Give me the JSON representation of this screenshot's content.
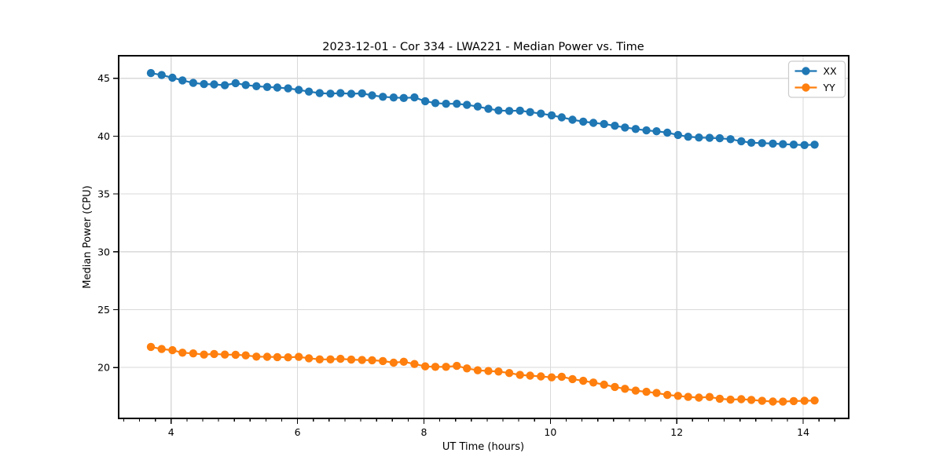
{
  "chart_data": {
    "type": "line",
    "title": "2023-12-01 - Cor 334 - LWA221 - Median Power vs. Time",
    "xlabel": "UT Time (hours)",
    "ylabel": "Median Power (CPU)",
    "xlim": [
      3.17,
      14.72
    ],
    "ylim": [
      15.6,
      46.95
    ],
    "x_ticks": [
      4,
      6,
      8,
      10,
      12,
      14
    ],
    "x_minor_step": 0.25,
    "y_ticks": [
      20,
      25,
      30,
      35,
      40,
      45
    ],
    "grid": true,
    "legend_position": "upper right",
    "marker": "circle",
    "style": {
      "background": "#ffffff",
      "grid_color": "#d9d9d9",
      "spine_color": "#000000",
      "legend_border": "#cccccc"
    },
    "x": [
      3.68,
      3.85,
      4.02,
      4.18,
      4.35,
      4.52,
      4.68,
      4.85,
      5.02,
      5.18,
      5.35,
      5.52,
      5.68,
      5.85,
      6.02,
      6.18,
      6.35,
      6.52,
      6.68,
      6.85,
      7.02,
      7.18,
      7.35,
      7.52,
      7.68,
      7.85,
      8.02,
      8.18,
      8.35,
      8.52,
      8.68,
      8.85,
      9.02,
      9.18,
      9.35,
      9.52,
      9.68,
      9.85,
      10.02,
      10.18,
      10.35,
      10.52,
      10.68,
      10.85,
      11.02,
      11.18,
      11.35,
      11.52,
      11.68,
      11.85,
      12.02,
      12.18,
      12.35,
      12.52,
      12.68,
      12.85,
      13.02,
      13.18,
      13.35,
      13.52,
      13.68,
      13.85,
      14.02,
      14.18
    ],
    "series": [
      {
        "name": "XX",
        "color": "#1f77b4",
        "values": [
          45.45,
          45.28,
          45.05,
          44.82,
          44.6,
          44.5,
          44.47,
          44.4,
          44.58,
          44.42,
          44.32,
          44.25,
          44.2,
          44.13,
          44.0,
          43.85,
          43.72,
          43.67,
          43.72,
          43.66,
          43.7,
          43.52,
          43.4,
          43.34,
          43.3,
          43.35,
          43.02,
          42.86,
          42.8,
          42.8,
          42.7,
          42.56,
          42.36,
          42.22,
          42.18,
          42.21,
          42.08,
          41.95,
          41.8,
          41.62,
          41.42,
          41.26,
          41.15,
          41.05,
          40.9,
          40.75,
          40.62,
          40.5,
          40.42,
          40.3,
          40.1,
          39.95,
          39.88,
          39.85,
          39.82,
          39.74,
          39.56,
          39.43,
          39.4,
          39.36,
          39.31,
          39.27,
          39.23,
          39.26
        ]
      },
      {
        "name": "YY",
        "color": "#ff7f0e",
        "values": [
          21.78,
          21.6,
          21.5,
          21.28,
          21.22,
          21.12,
          21.17,
          21.12,
          21.1,
          21.05,
          20.94,
          20.93,
          20.9,
          20.88,
          20.92,
          20.8,
          20.7,
          20.7,
          20.75,
          20.68,
          20.65,
          20.63,
          20.56,
          20.42,
          20.5,
          20.3,
          20.1,
          20.06,
          20.06,
          20.14,
          19.92,
          19.76,
          19.7,
          19.65,
          19.52,
          19.36,
          19.3,
          19.23,
          19.15,
          19.2,
          19.0,
          18.85,
          18.7,
          18.52,
          18.32,
          18.16,
          18.0,
          17.9,
          17.8,
          17.63,
          17.55,
          17.46,
          17.4,
          17.45,
          17.3,
          17.22,
          17.26,
          17.2,
          17.12,
          17.06,
          17.05,
          17.1,
          17.12,
          17.15
        ]
      }
    ]
  }
}
